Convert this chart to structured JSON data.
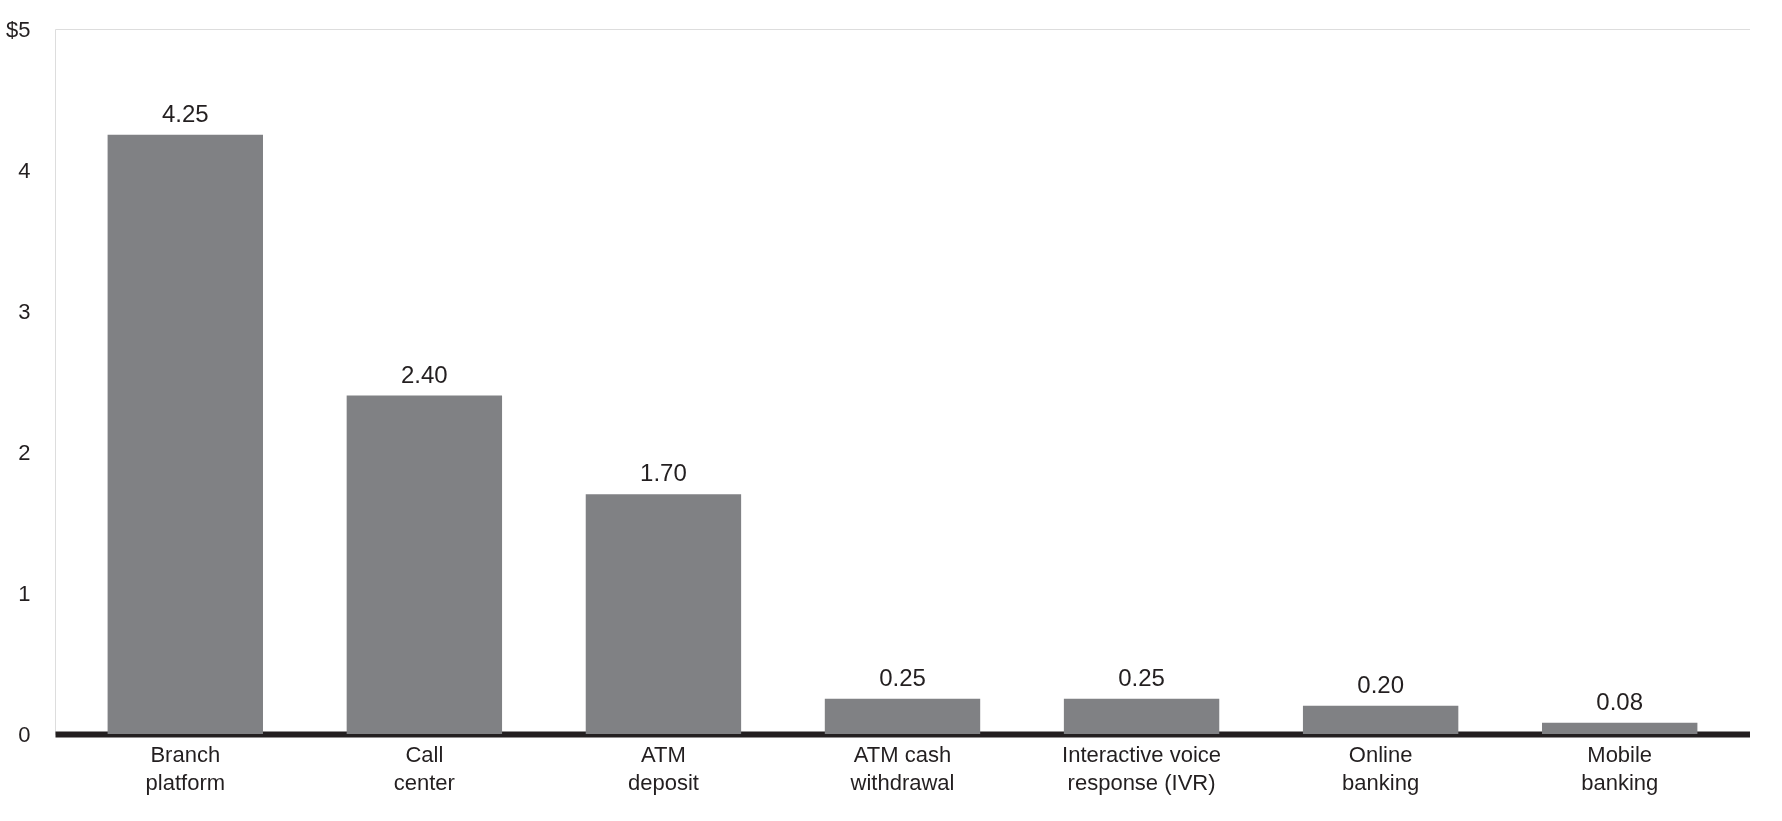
{
  "chart_data": {
    "type": "bar",
    "categories": [
      "Branch\nplatform",
      "Call\ncenter",
      "ATM\ndeposit",
      "ATM cash\nwithdrawal",
      "Interactive voice\nresponse (IVR)",
      "Online\nbanking",
      "Mobile\nbanking"
    ],
    "values": [
      4.25,
      2.4,
      1.7,
      0.25,
      0.25,
      0.2,
      0.08
    ],
    "value_labels": [
      "4.25",
      "2.40",
      "1.70",
      "0.25",
      "0.25",
      "0.20",
      "0.08"
    ],
    "color": "#808184",
    "ylim": [
      0,
      5
    ],
    "yticks": [
      0,
      1,
      2,
      3,
      4,
      {
        "value": 5,
        "label": "$5"
      }
    ],
    "grid": false
  }
}
